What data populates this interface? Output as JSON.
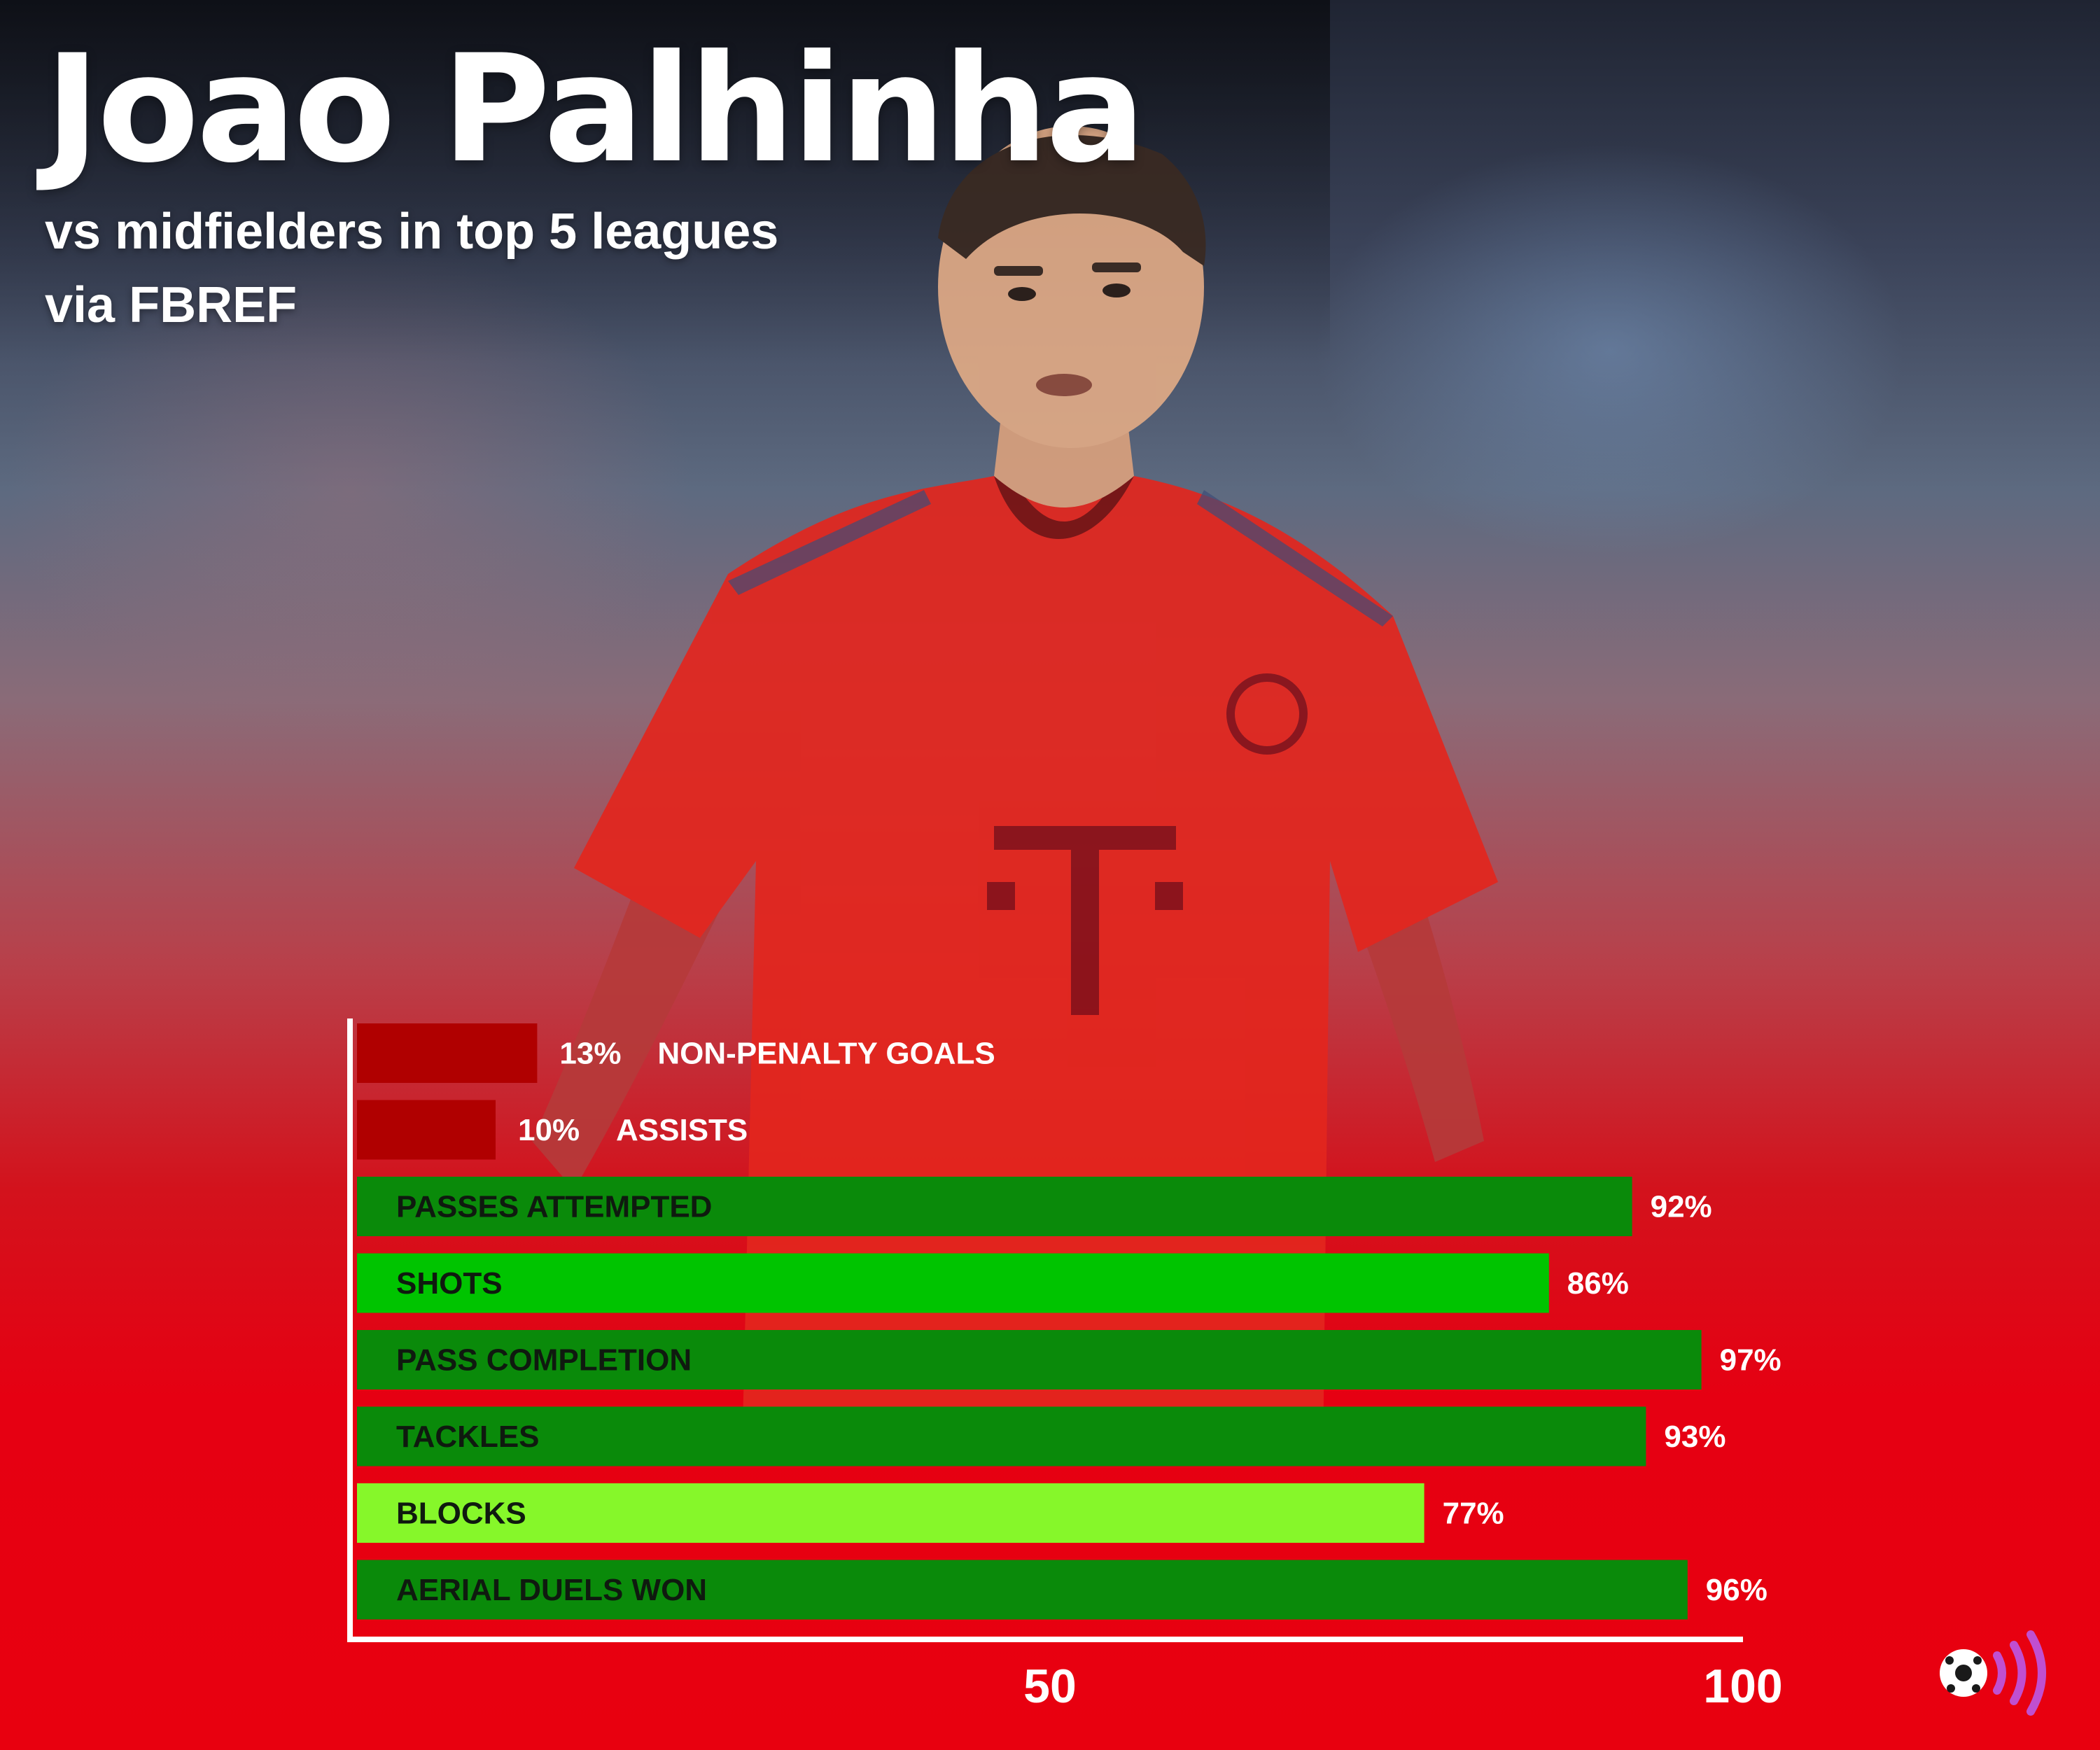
{
  "header": {
    "title": "Joao Palhinha",
    "subtitle": "vs midfielders in top 5 leagues",
    "source": "via FBREF"
  },
  "colors": {
    "background": "#e60012",
    "low_bar": "#b00000",
    "dark_green": "#0a8a0a",
    "bright_green": "#00c400",
    "light_green": "#86f72a",
    "axis": "#ffffff"
  },
  "icons": {
    "logo": "football-sound-waves-icon"
  },
  "chart_data": {
    "type": "bar",
    "orientation": "horizontal",
    "title": "",
    "xlabel": "",
    "ylabel": "",
    "xlim": [
      0,
      100
    ],
    "x_ticks": [
      50,
      100
    ],
    "grid": false,
    "categories": [
      "NON-PENALTY GOALS",
      "ASSISTS",
      "PASSES ATTEMPTED",
      "SHOTS",
      "PASS COMPLETION",
      "TACKLES",
      "BLOCKS",
      "AERIAL DUELS WON"
    ],
    "values": [
      13,
      10,
      92,
      86,
      97,
      93,
      77,
      96
    ],
    "value_labels": [
      "13%",
      "10%",
      "92%",
      "86%",
      "97%",
      "93%",
      "77%",
      "96%"
    ],
    "bar_colors": [
      "#b00000",
      "#b00000",
      "#0a8a0a",
      "#00c400",
      "#0a8a0a",
      "#0a8a0a",
      "#86f72a",
      "#0a8a0a"
    ]
  }
}
